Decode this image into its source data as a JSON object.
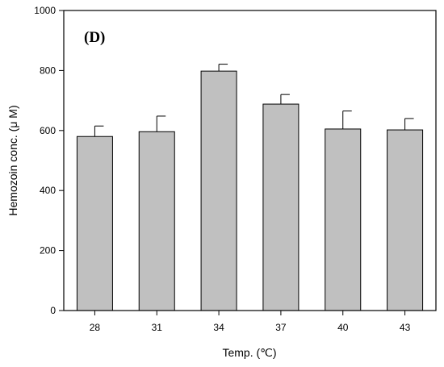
{
  "panel_label": "(D)",
  "chart_data": {
    "type": "bar",
    "categories": [
      "28",
      "31",
      "34",
      "37",
      "40",
      "43"
    ],
    "values": [
      580,
      596,
      798,
      688,
      605,
      602
    ],
    "error_upper": [
      35,
      52,
      23,
      32,
      60,
      38
    ],
    "xlabel": "Temp. (℃)",
    "ylabel": "Hemozoin conc. (μ M)",
    "ylim": [
      0,
      1000
    ],
    "yticks": [
      "0",
      "200",
      "400",
      "600",
      "800",
      "1000"
    ],
    "grid": false,
    "legend": "none",
    "bar_color": "#c0c0c0",
    "edge_color": "#000000"
  }
}
